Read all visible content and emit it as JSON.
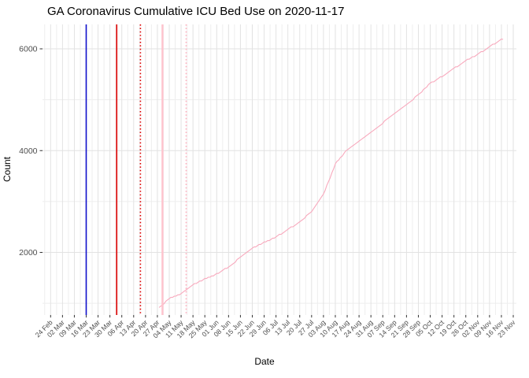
{
  "chart": {
    "title": "GA Coronavirus Cumulative ICU Bed Use on 2020-11-17",
    "x_axis_label": "Date",
    "y_axis_label": "Count"
  },
  "chart_data": {
    "type": "line",
    "title": "GA Coronavirus Cumulative ICU Bed Use on 2020-11-17",
    "xlabel": "Date",
    "ylabel": "Count",
    "grid": "on",
    "legend": "none",
    "background": "#ffffff",
    "grid_major_color": "#e2e2e2",
    "grid_minor_color": "#eeeeee",
    "tick_label_color": "#4d4d4d",
    "ylim": [
      770,
      6480
    ],
    "xlim": [
      "2020-02-19",
      "2020-11-25"
    ],
    "y_ticks": [
      2000,
      4000,
      6000
    ],
    "y_minor_ticks": [
      1000,
      3000,
      5000
    ],
    "x_tick_labels": [
      "24 Feb",
      "02 Mar",
      "09 Mar",
      "16 Mar",
      "23 Mar",
      "30 Mar",
      "06 Apr",
      "13 Apr",
      "20 Apr",
      "27 Apr",
      "04 May",
      "11 May",
      "18 May",
      "25 May",
      "01 Jun",
      "08 Jun",
      "15 Jun",
      "22 Jun",
      "29 Jun",
      "06 Jul",
      "13 Jul",
      "20 Jul",
      "27 Jul",
      "03 Aug",
      "10 Aug",
      "17 Aug",
      "24 Aug",
      "31 Aug",
      "07 Sep",
      "14 Sep",
      "21 Sep",
      "28 Sep",
      "05 Oct",
      "12 Oct",
      "19 Oct",
      "26 Oct",
      "02 Nov",
      "09 Nov",
      "16 Nov",
      "23 Nov"
    ],
    "x_tick_dates": [
      "2020-02-24",
      "2020-03-02",
      "2020-03-09",
      "2020-03-16",
      "2020-03-23",
      "2020-03-30",
      "2020-04-06",
      "2020-04-13",
      "2020-04-20",
      "2020-04-27",
      "2020-05-04",
      "2020-05-11",
      "2020-05-18",
      "2020-05-25",
      "2020-06-01",
      "2020-06-08",
      "2020-06-15",
      "2020-06-22",
      "2020-06-29",
      "2020-07-06",
      "2020-07-13",
      "2020-07-20",
      "2020-07-27",
      "2020-08-03",
      "2020-08-10",
      "2020-08-17",
      "2020-08-24",
      "2020-08-31",
      "2020-09-07",
      "2020-09-14",
      "2020-09-21",
      "2020-09-28",
      "2020-10-05",
      "2020-10-12",
      "2020-10-19",
      "2020-10-26",
      "2020-11-02",
      "2020-11-09",
      "2020-11-16",
      "2020-11-23"
    ],
    "series": [
      {
        "name": "cumulative-icu-bed-use",
        "color": "#f8a9bd",
        "x": [
          "2020-04-28",
          "2020-05-04",
          "2020-05-11",
          "2020-05-18",
          "2020-05-25",
          "2020-06-01",
          "2020-06-08",
          "2020-06-15",
          "2020-06-22",
          "2020-06-29",
          "2020-07-06",
          "2020-07-13",
          "2020-07-20",
          "2020-07-27",
          "2020-08-03",
          "2020-08-10",
          "2020-08-17",
          "2020-08-24",
          "2020-08-31",
          "2020-09-07",
          "2020-09-14",
          "2020-09-21",
          "2020-09-28",
          "2020-10-05",
          "2020-10-12",
          "2020-10-19",
          "2020-10-26",
          "2020-11-02",
          "2020-11-09",
          "2020-11-16",
          "2020-11-17"
        ],
        "y": [
          910,
          1095,
          1190,
          1360,
          1480,
          1575,
          1715,
          1900,
          2085,
          2195,
          2300,
          2455,
          2595,
          2810,
          3135,
          3740,
          4020,
          4190,
          4360,
          4545,
          4730,
          4900,
          5100,
          5320,
          5460,
          5615,
          5770,
          5890,
          6045,
          6180,
          6185
        ]
      }
    ],
    "reference_lines": [
      {
        "date": "2020-03-16",
        "color": "#0f0fca",
        "style": "solid",
        "width": 1.6
      },
      {
        "date": "2020-04-03",
        "color": "#dd0000",
        "style": "solid",
        "width": 1.6
      },
      {
        "date": "2020-04-17",
        "color": "#dd0000",
        "style": "dotted",
        "width": 1.6
      },
      {
        "date": "2020-04-30",
        "color": "#ffc3cd",
        "style": "solid",
        "width": 2.4
      },
      {
        "date": "2020-05-14",
        "color": "#ffb6c3",
        "style": "dotted",
        "width": 1.8
      }
    ]
  }
}
